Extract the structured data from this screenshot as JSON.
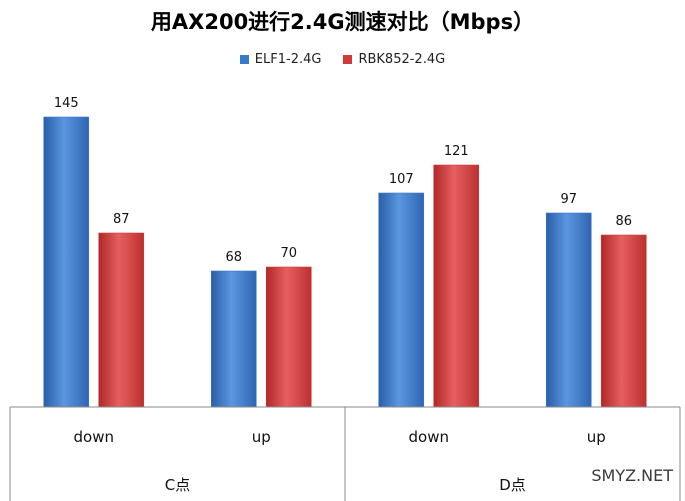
{
  "chart_data": {
    "type": "bar",
    "title": "用AX200进行2.4G测速对比（Mbps）",
    "groups": [
      {
        "name": "C点",
        "categories": [
          "down",
          "up"
        ]
      },
      {
        "name": "D点",
        "categories": [
          "down",
          "up"
        ]
      }
    ],
    "categories": [
      "down",
      "up",
      "down",
      "up"
    ],
    "series": [
      {
        "name": "ELF1-2.4G",
        "color": "#3a78c8",
        "values": [
          145,
          68,
          107,
          97
        ]
      },
      {
        "name": "RBK852-2.4G",
        "color": "#d23a3a",
        "values": [
          87,
          70,
          121,
          86
        ]
      }
    ],
    "ylim": [
      0,
      160
    ],
    "grid": false,
    "legend_position": "top"
  },
  "watermark": "SMYZ.NET"
}
